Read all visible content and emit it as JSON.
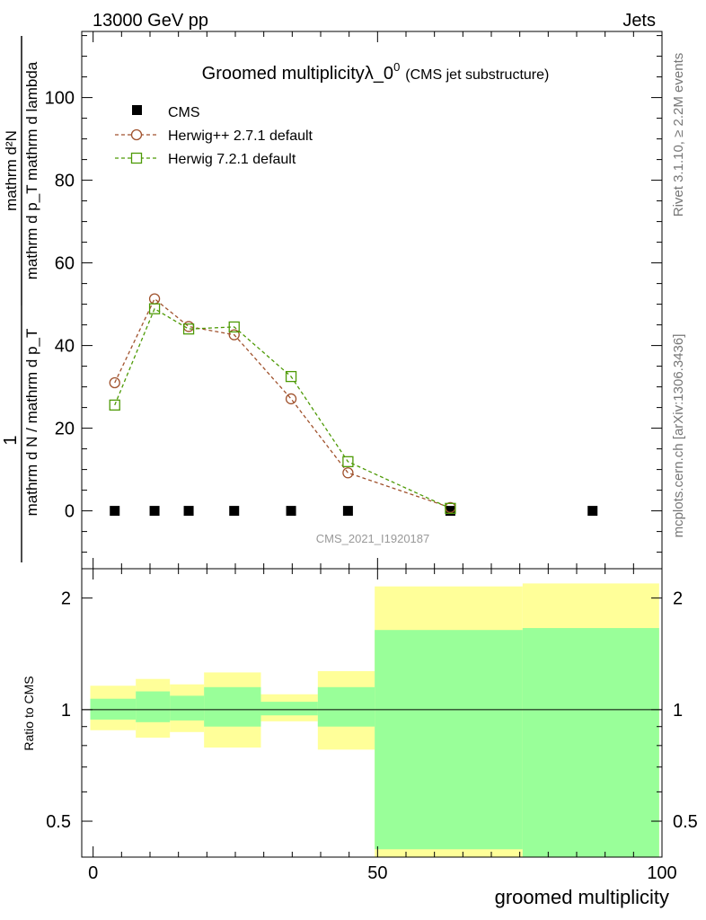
{
  "header": {
    "left": "13000 GeV pp",
    "right": "Jets"
  },
  "side_labels": {
    "rivet": "Rivet 3.1.10, ≥ 2.2M events",
    "mcplots": "mcplots.cern.ch [arXiv:1306.3436]"
  },
  "watermark": "CMS_2021_I1920187",
  "colors": {
    "herwig_pp": "#a0522d",
    "herwig7": "#4e9a06",
    "band_yellow": "#ffff99",
    "band_green": "#99ff99",
    "cms": "#000000"
  },
  "chart_data": [
    {
      "type": "line",
      "title_main": "Groomed multiplicity",
      "title_lambda": "λ_0",
      "title_sup": "0",
      "title_note": "(CMS jet substructure)",
      "ylabel_numerator": "1",
      "ylabel_denominator": "mathrm d N / mathrm d p_T",
      "ylabel_frac_numer": "mathrm d²N",
      "ylabel_frac_denom": "mathrm d p_T mathrm d lambda",
      "ylim": [
        -14,
        116
      ],
      "xlim": [
        -2,
        100
      ],
      "yticks": [
        0,
        20,
        40,
        60,
        80,
        100
      ],
      "ytick_labels": [
        "0",
        "20",
        "40",
        "60",
        "80",
        "100"
      ],
      "legend_placement": "top-left",
      "series": [
        {
          "name": "CMS",
          "marker": "square",
          "x": [
            3.8,
            10.8,
            16.8,
            24.8,
            34.8,
            44.8,
            62.8,
            87.8
          ],
          "y": [
            0,
            0,
            0,
            0,
            0,
            0,
            0,
            0
          ]
        },
        {
          "name": "Herwig++ 2.7.1 default",
          "marker": "circle",
          "style": "dashed",
          "x": [
            3.8,
            10.8,
            16.8,
            24.8,
            34.8,
            44.8,
            62.8
          ],
          "y": [
            31,
            51.3,
            44.6,
            42.6,
            27.1,
            9.2,
            0.8
          ]
        },
        {
          "name": "Herwig 7.2.1 default",
          "marker": "open-square",
          "style": "dashed",
          "x": [
            3.8,
            10.8,
            16.8,
            24.8,
            34.8,
            44.8,
            62.8
          ],
          "y": [
            25.6,
            48.9,
            44.0,
            44.5,
            32.5,
            11.9,
            0.6
          ]
        }
      ]
    },
    {
      "type": "area",
      "ylabel": "Ratio to CMS",
      "xlabel": "groomed multiplicity",
      "xticks": [
        0,
        50,
        100
      ],
      "xtick_labels": [
        "0",
        "50",
        "100"
      ],
      "yticks": [
        0.5,
        1,
        2
      ],
      "ytick_labels": [
        "0.5",
        "1",
        "2"
      ],
      "ylim": [
        0.4,
        2.4
      ],
      "reference": 1,
      "bins": [
        {
          "x0": -0.5,
          "x1": 7.5,
          "yellow": [
            0.88,
            1.16
          ],
          "green": [
            0.94,
            1.07
          ]
        },
        {
          "x0": 7.5,
          "x1": 13.5,
          "yellow": [
            0.84,
            1.21
          ],
          "green": [
            0.925,
            1.12
          ]
        },
        {
          "x0": 13.5,
          "x1": 19.5,
          "yellow": [
            0.87,
            1.17
          ],
          "green": [
            0.935,
            1.09
          ]
        },
        {
          "x0": 19.5,
          "x1": 29.5,
          "yellow": [
            0.79,
            1.26
          ],
          "green": [
            0.9,
            1.15
          ]
        },
        {
          "x0": 29.5,
          "x1": 39.5,
          "yellow": [
            0.93,
            1.1
          ],
          "green": [
            0.965,
            1.05
          ]
        },
        {
          "x0": 39.5,
          "x1": 49.5,
          "yellow": [
            0.78,
            1.27
          ],
          "green": [
            0.9,
            1.15
          ]
        },
        {
          "x0": 49.5,
          "x1": 75.5,
          "yellow": [
            0.4,
            2.15
          ],
          "green": [
            0.42,
            1.64
          ]
        },
        {
          "x0": 75.5,
          "x1": 99.5,
          "yellow": [
            0.4,
            2.19
          ],
          "green": [
            0.4,
            1.66
          ]
        }
      ]
    }
  ]
}
